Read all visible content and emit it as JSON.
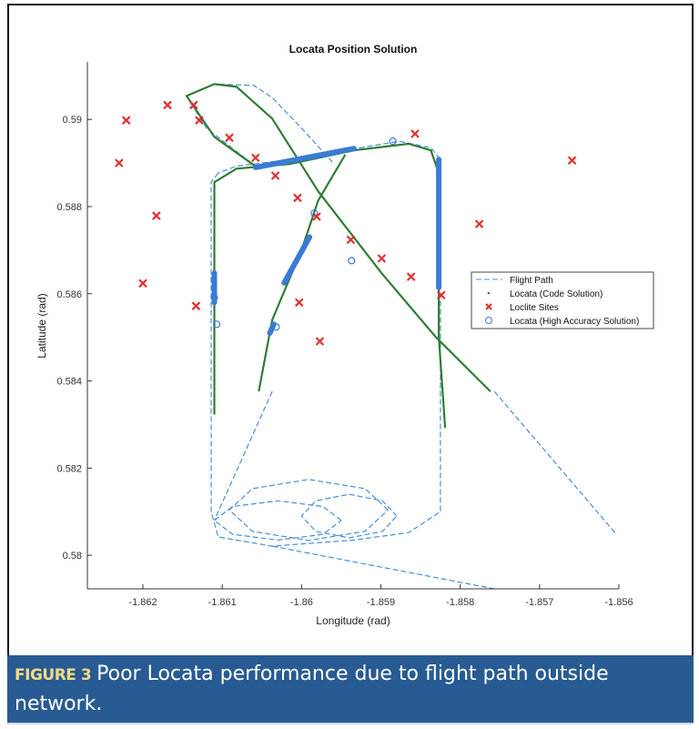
{
  "chart_data": {
    "type": "scatter",
    "title": "Locata Position Solution",
    "xlabel": "Longitude (rad)",
    "ylabel": "Latitude (rad)",
    "xlim": [
      -1.8627,
      -1.856
    ],
    "ylim": [
      0.57923,
      0.59132
    ],
    "xticks": [
      -1.862,
      -1.861,
      -1.86,
      -1.859,
      -1.858,
      -1.857,
      -1.856
    ],
    "xtick_labels": [
      "-1.862",
      "-1.861",
      "-1.86",
      "-1.859",
      "-1.858",
      "-1.857",
      "-1.856"
    ],
    "yticks": [
      0.58,
      0.582,
      0.584,
      0.586,
      0.588,
      0.59
    ],
    "ytick_labels": [
      "0.58",
      "0.582",
      "0.584",
      "0.586",
      "0.588",
      "0.59"
    ],
    "grid": false,
    "legend_position": "right",
    "colors": {
      "flight_path": "#4a8fd6",
      "code": "#2e7d32",
      "sites": "#e03030",
      "high_accuracy": "#3a7bd5"
    },
    "series": [
      {
        "name": "Flight Path",
        "style": "dashed-line",
        "segments": [
          [
            [
              -1.86105,
              0.58877
            ],
            [
              -1.86114,
              0.58856
            ],
            [
              -1.86114,
              0.581
            ],
            [
              -1.86105,
              0.58042
            ],
            [
              -1.86037,
              0.58021
            ],
            [
              -1.85934,
              0.58035
            ],
            [
              -1.85865,
              0.58052
            ],
            [
              -1.85825,
              0.581
            ],
            [
              -1.85825,
              0.58908
            ],
            [
              -1.85837,
              0.58935
            ],
            [
              -1.85877,
              0.5895
            ],
            [
              -1.85945,
              0.58929
            ],
            [
              -1.86014,
              0.58908
            ],
            [
              -1.86082,
              0.58893
            ],
            [
              -1.86105,
              0.58877
            ]
          ],
          [
            [
              -1.86054,
              0.58887
            ],
            [
              -1.8612,
              0.5898
            ],
            [
              -1.86145,
              0.59054
            ],
            [
              -1.8611,
              0.59081
            ],
            [
              -1.8606,
              0.59078
            ],
            [
              -1.86037,
              0.5905
            ],
            [
              -1.86,
              0.5898
            ],
            [
              -1.8596,
              0.589
            ]
          ],
          [
            [
              -1.85891,
              0.58104
            ],
            [
              -1.8592,
              0.58153
            ],
            [
              -1.85991,
              0.58174
            ],
            [
              -1.86062,
              0.58153
            ],
            [
              -1.86091,
              0.58104
            ],
            [
              -1.86062,
              0.58055
            ],
            [
              -1.85991,
              0.58034
            ],
            [
              -1.8592,
              0.58055
            ],
            [
              -1.85891,
              0.58104
            ]
          ],
          [
            [
              -1.8588,
              0.5809
            ],
            [
              -1.85898,
              0.58125
            ],
            [
              -1.8594,
              0.5814
            ],
            [
              -1.85982,
              0.58125
            ],
            [
              -1.86,
              0.5809
            ],
            [
              -1.85982,
              0.58055
            ],
            [
              -1.8594,
              0.5804
            ],
            [
              -1.85898,
              0.58055
            ],
            [
              -1.8588,
              0.5809
            ]
          ],
          [
            [
              -1.8595,
              0.5808
            ],
            [
              -1.85973,
              0.58112
            ],
            [
              -1.8603,
              0.58125
            ],
            [
              -1.86087,
              0.58112
            ],
            [
              -1.8611,
              0.5808
            ],
            [
              -1.86087,
              0.58048
            ],
            [
              -1.8603,
              0.58035
            ],
            [
              -1.85973,
              0.58048
            ],
            [
              -1.8595,
              0.5808
            ]
          ],
          [
            [
              -1.86037,
              0.58376
            ],
            [
              -1.8611,
              0.5808
            ]
          ],
          [
            [
              -1.86037,
              0.58021
            ],
            [
              -1.85757,
              0.57923
            ]
          ],
          [
            [
              -1.85605,
              0.58052
            ],
            [
              -1.85757,
              0.58376
            ]
          ]
        ]
      },
      {
        "name": "Locata (Code Solution)",
        "style": "dots",
        "segments": [
          [
            [
              -1.8611,
              0.58323
            ],
            [
              -1.8611,
              0.58856
            ],
            [
              -1.86082,
              0.58887
            ],
            [
              -1.86014,
              0.58898
            ],
            [
              -1.85934,
              0.58929
            ],
            [
              -1.85865,
              0.58944
            ],
            [
              -1.85837,
              0.58929
            ],
            [
              -1.85827,
              0.58877
            ],
            [
              -1.85827,
              0.58501
            ],
            [
              -1.85819,
              0.58292
            ]
          ],
          [
            [
              -1.86054,
              0.58887
            ],
            [
              -1.8611,
              0.5896
            ],
            [
              -1.86145,
              0.59054
            ],
            [
              -1.8611,
              0.59081
            ],
            [
              -1.86082,
              0.59075
            ],
            [
              -1.86037,
              0.59002
            ],
            [
              -1.85979,
              0.58835
            ],
            [
              -1.85899,
              0.58647
            ],
            [
              -1.85831,
              0.58501
            ],
            [
              -1.85762,
              0.58376
            ]
          ],
          [
            [
              -1.86054,
              0.58376
            ],
            [
              -1.86037,
              0.5854
            ],
            [
              -1.86,
              0.587
            ],
            [
              -1.85979,
              0.58814
            ],
            [
              -1.85945,
              0.58919
            ]
          ]
        ]
      },
      {
        "name": "Loclite Sites",
        "style": "x-marker",
        "points": [
          [
            -1.86221,
            0.58998
          ],
          [
            -1.86169,
            0.59033
          ],
          [
            -1.86136,
            0.59033
          ],
          [
            -1.86129,
            0.58998
          ],
          [
            -1.86091,
            0.58958
          ],
          [
            -1.8623,
            0.589
          ],
          [
            -1.86183,
            0.58779
          ],
          [
            -1.862,
            0.58624
          ],
          [
            -1.86133,
            0.58572
          ],
          [
            -1.86058,
            0.58912
          ],
          [
            -1.86033,
            0.58871
          ],
          [
            -1.86005,
            0.5882
          ],
          [
            -1.85981,
            0.58777
          ],
          [
            -1.85938,
            0.58724
          ],
          [
            -1.85899,
            0.58681
          ],
          [
            -1.85857,
            0.58967
          ],
          [
            -1.85862,
            0.58639
          ],
          [
            -1.85824,
            0.58597
          ],
          [
            -1.85776,
            0.5876
          ],
          [
            -1.85659,
            0.58906
          ],
          [
            -1.86003,
            0.5858
          ],
          [
            -1.85977,
            0.58491
          ]
        ]
      },
      {
        "name": "Locata (High Accuracy Solution)",
        "style": "circle-marker",
        "points": [
          [
            -1.86107,
            0.5853
          ],
          [
            -1.8611,
            0.58591
          ],
          [
            -1.86032,
            0.58524
          ],
          [
            -1.85984,
            0.58785
          ],
          [
            -1.85937,
            0.58676
          ],
          [
            -1.85885,
            0.5895
          ]
        ],
        "dense_segments": [
          [
            [
              -1.86058,
              0.5889
            ],
            [
              -1.85934,
              0.58933
            ]
          ],
          [
            [
              -1.85827,
              0.58908
            ],
            [
              -1.85827,
              0.58615
            ]
          ],
          [
            [
              -1.86022,
              0.58625
            ],
            [
              -1.8599,
              0.5873
            ]
          ],
          [
            [
              -1.8611,
              0.58647
            ],
            [
              -1.8611,
              0.5858
            ]
          ],
          [
            [
              -1.8604,
              0.5851
            ],
            [
              -1.86035,
              0.5853
            ]
          ]
        ]
      }
    ]
  },
  "caption": {
    "label": "FIGURE 3",
    "text": "Poor Locata performance due to flight path outside network."
  }
}
